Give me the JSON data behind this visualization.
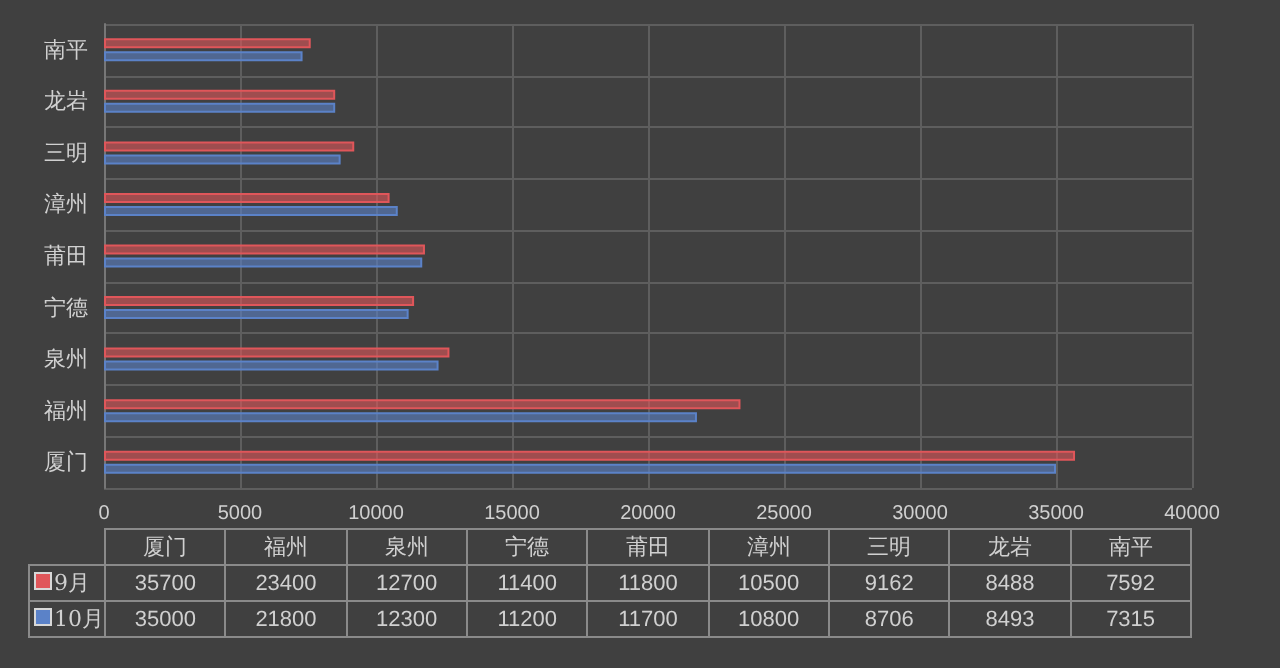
{
  "chart_data": [
    {
      "type": "bar",
      "orientation": "horizontal",
      "categories": [
        "南平",
        "龙岩",
        "三明",
        "漳州",
        "莆田",
        "宁德",
        "泉州",
        "福州",
        "厦门"
      ],
      "series": [
        {
          "color": "#e0565a",
          "values": [
            7600,
            8500,
            9200,
            10500,
            11800,
            11400,
            12700,
            23400,
            35700
          ]
        },
        {
          "color": "#5b82c8",
          "values": [
            7300,
            8500,
            8700,
            10800,
            11700,
            11200,
            12300,
            21800,
            35000
          ]
        }
      ],
      "xlim": [
        0,
        40000
      ],
      "xticks": [
        0,
        5000,
        10000,
        15000,
        20000,
        25000,
        30000,
        35000,
        40000
      ],
      "grid": true
    },
    {
      "type": "other",
      "categories": [
        "厦门",
        "福州",
        "泉州",
        "宁德",
        "莆田",
        "漳州",
        "三明",
        "龙岩",
        "南平"
      ],
      "series": [
        {
          "name": "9月",
          "values": [
            35700,
            23400,
            12700,
            11400,
            11800,
            10500,
            9162,
            8488,
            7592
          ]
        },
        {
          "name": "10月",
          "values": [
            35000,
            21800,
            12300,
            11200,
            11700,
            10800,
            8706,
            8493,
            7315
          ]
        }
      ],
      "data_labels": true
    }
  ]
}
